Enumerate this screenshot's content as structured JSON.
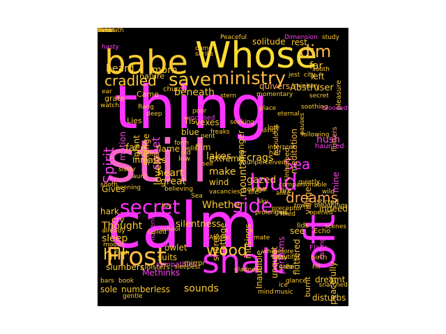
{
  "palette": {
    "background": "#000000",
    "magenta": "#ff33ff",
    "pink": "#ff66cc",
    "orange": "#ff9966",
    "yellow": "#ffdd33",
    "light_orange": "#ffaa55"
  },
  "words": [
    {
      "text": "thing",
      "color": "#ff33ff"
    },
    {
      "text": "still",
      "color": "#ff66cc"
    },
    {
      "text": "calm",
      "color": "#ff33ff"
    },
    {
      "text": "Whose",
      "color": "#ffdd33"
    },
    {
      "text": "babe",
      "color": "#ffcc33"
    },
    {
      "text": "Frost",
      "color": "#ffbb44"
    },
    {
      "text": "shalt",
      "color": "#ff33ff"
    },
    {
      "text": "secret",
      "color": "#ff33ff"
    },
    {
      "text": "side",
      "color": "#ff33ff"
    },
    {
      "text": "oft",
      "color": "#ff33ff"
    },
    {
      "text": "loud",
      "color": "#ff33ff"
    },
    {
      "text": "ministry",
      "color": "#ffbb44"
    },
    {
      "text": "save",
      "color": "#ffcc33"
    },
    {
      "text": "Spirit",
      "color": "#ff44ee"
    },
    {
      "text": "dreams",
      "color": "#ffaa55"
    },
    {
      "text": "cradled",
      "color": "#ffcc33"
    },
    {
      "text": "wood",
      "color": "#ffcc33"
    },
    {
      "text": "Sea",
      "color": "#ff33ff"
    },
    {
      "text": "dim",
      "color": "#ffbb44"
    },
    {
      "text": "hill",
      "color": "#ffcc33"
    },
    {
      "text": "heard",
      "color": "#ffcc33"
    },
    {
      "text": "morn",
      "color": "#ffcc33"
    },
    {
      "text": "rest",
      "color": "#ffcc33"
    },
    {
      "text": "far",
      "color": "#ffcc33"
    },
    {
      "text": "gazed",
      "color": "#ffbb44"
    },
    {
      "text": "sweet",
      "color": "#ff44ee"
    },
    {
      "text": "lovely",
      "color": "#ffcc33"
    },
    {
      "text": "crags",
      "color": "#ffcc33"
    },
    {
      "text": "mountain",
      "color": "#ffcc33"
    },
    {
      "text": "lakes",
      "color": "#ffcc33"
    },
    {
      "text": "make",
      "color": "#ffcc33"
    },
    {
      "text": "beneath",
      "color": "#ffcc33"
    },
    {
      "text": "face",
      "color": "#ffcc33"
    },
    {
      "text": "heart",
      "color": "#ffcc33"
    },
    {
      "text": "great",
      "color": "#ffcc33"
    },
    {
      "text": "Thought",
      "color": "#ffcc33"
    },
    {
      "text": "sleep",
      "color": "#ffcc33"
    },
    {
      "text": "sounds",
      "color": "#ffcc33"
    },
    {
      "text": "dreamt",
      "color": "#ffcc33"
    },
    {
      "text": "shores",
      "color": "#ffcc33"
    },
    {
      "text": "Whether",
      "color": "#ffcc33"
    },
    {
      "text": "silentness",
      "color": "#ffcc33"
    },
    {
      "text": "indeed",
      "color": "#ffcc33"
    },
    {
      "text": "hush",
      "color": "#ff44ee"
    },
    {
      "text": "village",
      "color": "#ffbb44"
    },
    {
      "text": "Abstruser",
      "color": "#ffcc33"
    },
    {
      "text": "quivers",
      "color": "#ffaa55"
    },
    {
      "text": "stranger",
      "color": "#ffcc33"
    },
    {
      "text": "fluttered",
      "color": "#ffcc33"
    },
    {
      "text": "populous",
      "color": "#ffbb44"
    },
    {
      "text": "meditation",
      "color": "#ffbb44"
    },
    {
      "text": "solitude",
      "color": "#ffcc33"
    },
    {
      "text": "strange",
      "color": "#ffcc33"
    },
    {
      "text": "infant",
      "color": "#ffcc33"
    },
    {
      "text": "motion",
      "color": "#ff44ee"
    },
    {
      "text": "inmates",
      "color": "#ffcc33"
    },
    {
      "text": "flame",
      "color": "#ffcc33"
    },
    {
      "text": "film",
      "color": "#ffcc33"
    },
    {
      "text": "blue",
      "color": "#ffcc33"
    },
    {
      "text": "extreme",
      "color": "#ffcc33"
    },
    {
      "text": "wind",
      "color": "#ffcc33"
    },
    {
      "text": "vexes",
      "color": "#ffcc33"
    },
    {
      "text": "Tis",
      "color": "#ffcc33"
    },
    {
      "text": "goings",
      "color": "#ffcc33"
    },
    {
      "text": "life",
      "color": "#ffcc33"
    },
    {
      "text": "fire",
      "color": "#ffcc33"
    },
    {
      "text": "Unhelped",
      "color": "#ffcc33"
    },
    {
      "text": "see",
      "color": "#ffcc33"
    },
    {
      "text": "mine",
      "color": "#ff44ee"
    },
    {
      "text": "left",
      "color": "#ffcc33"
    },
    {
      "text": "nature",
      "color": "#ffcc33"
    },
    {
      "text": "grate",
      "color": "#ffcc33"
    },
    {
      "text": "Came",
      "color": "#ffcc33"
    },
    {
      "text": "Lies",
      "color": "#ffcc33"
    },
    {
      "text": "church",
      "color": "#ffcc33"
    },
    {
      "text": "Gives",
      "color": "#ffcc33"
    },
    {
      "text": "hark",
      "color": "#ffcc33"
    },
    {
      "text": "cry",
      "color": "#ffcc33"
    },
    {
      "text": "slumbers",
      "color": "#ffcc33"
    },
    {
      "text": "suits",
      "color": "#ffcc33"
    },
    {
      "text": "owlet",
      "color": "#ffcc33"
    },
    {
      "text": "Methinks",
      "color": "#ff44ee"
    },
    {
      "text": "numberless",
      "color": "#ffcc33"
    },
    {
      "text": "sole",
      "color": "#ffcc33"
    },
    {
      "text": "cottage",
      "color": "#ffcc33"
    },
    {
      "text": "musings",
      "color": "#ffcc33"
    },
    {
      "text": "Inaudible",
      "color": "#ffcc33"
    },
    {
      "text": "unquiet",
      "color": "#ffcc33"
    },
    {
      "text": "performs",
      "color": "#ff44ee"
    },
    {
      "text": "burnt",
      "color": "#ffcc33"
    },
    {
      "text": "peacefully",
      "color": "#ffcc33"
    },
    {
      "text": "disturbs",
      "color": "#ffcc33"
    },
    {
      "text": "pleasure",
      "color": "#ffcc33"
    },
    {
      "text": "flutters",
      "color": "#ffaa55"
    },
    {
      "text": "haunted",
      "color": "#ff44ee"
    },
    {
      "text": "stirred",
      "color": "#ffcc33"
    },
    {
      "text": "Echo",
      "color": "#ffcc33"
    },
    {
      "text": "Flaps",
      "color": "#ff44ee"
    },
    {
      "text": "birth",
      "color": "#ffcc33"
    },
    {
      "text": "lids",
      "color": "#ffcc33"
    },
    {
      "text": "low",
      "color": "#ffcc33"
    },
    {
      "text": "form",
      "color": "#ffcc33"
    },
    {
      "text": "toy",
      "color": "#ffcc33"
    },
    {
      "text": "Making",
      "color": "#ffcc33"
    },
    {
      "text": "sister",
      "color": "#ffcc33"
    },
    {
      "text": "watch",
      "color": "#ffcc33"
    },
    {
      "text": "Rang",
      "color": "#ffcc33"
    },
    {
      "text": "poor",
      "color": "#ffcc33"
    },
    {
      "text": "come",
      "color": "#ffcc33"
    },
    {
      "text": "shrills",
      "color": "#ffcc33"
    },
    {
      "text": "opened",
      "color": "#ffcc33"
    },
    {
      "text": "falling",
      "color": "#ff44ee"
    },
    {
      "text": "evening",
      "color": "#ffcc33"
    },
    {
      "text": "fluttering",
      "color": "#ff44ee"
    },
    {
      "text": "already",
      "color": "#ffcc33"
    },
    {
      "text": "moods",
      "color": "#ffcc33"
    },
    {
      "text": "sympathies",
      "color": "#ff44ee"
    },
    {
      "text": "Lulled",
      "color": "#ffcc33"
    },
    {
      "text": "school",
      "color": "#ffcc33"
    },
    {
      "text": "cloisters",
      "color": "#ffcc33"
    },
    {
      "text": "sleepest",
      "color": "#ffcc33"
    },
    {
      "text": "mirror",
      "color": "#ffcc33"
    },
    {
      "text": "mind",
      "color": "#ffcc33"
    },
    {
      "text": "music",
      "color": "#ffcc33"
    },
    {
      "text": "gentle",
      "color": "#ffcc33"
    },
    {
      "text": "glance",
      "color": "#ffcc33"
    },
    {
      "text": "day",
      "color": "#ffcc33"
    },
    {
      "text": "Fair",
      "color": "#ffcc33"
    },
    {
      "text": "Fill",
      "color": "#ffcc33"
    },
    {
      "text": "thus",
      "color": "#ffcc33"
    },
    {
      "text": "preceptor",
      "color": "#ffcc33"
    },
    {
      "text": "companionable",
      "color": "#ffcc33"
    },
    {
      "text": "interpret",
      "color": "#ffcc33"
    },
    {
      "text": "freaks",
      "color": "#ffcc33"
    },
    {
      "text": "unclosed",
      "color": "#ff44ee"
    },
    {
      "text": "seeking",
      "color": "#ffcc33"
    },
    {
      "text": "vacancies",
      "color": "#ffcc33"
    },
    {
      "text": "believing",
      "color": "#ffcc33"
    },
    {
      "text": "gladness",
      "color": "#ffcc33"
    },
    {
      "text": "prolonged",
      "color": "#ffcc33"
    },
    {
      "text": "momentary",
      "color": "#ffcc33"
    },
    {
      "text": "eternal",
      "color": "#ffcc33"
    },
    {
      "text": "Peaceful",
      "color": "#ffcc33"
    },
    {
      "text": "Dimension",
      "color": "#ff44ee"
    },
    {
      "text": "study",
      "color": "#ffcc33"
    },
    {
      "text": "hasty",
      "color": "#ff44ee"
    },
    {
      "text": "brooded",
      "color": "#ff44ee"
    },
    {
      "text": "ear",
      "color": "#ffcc33"
    },
    {
      "text": "stern",
      "color": "#ffcc33"
    },
    {
      "text": "place",
      "color": "#ffcc33"
    },
    {
      "text": "half",
      "color": "#ffcc33"
    },
    {
      "text": "live",
      "color": "#ffcc33"
    },
    {
      "text": "alike",
      "color": "#ffcc33"
    },
    {
      "text": "tower",
      "color": "#ffcc33"
    },
    {
      "text": "bars",
      "color": "#ffcc33"
    },
    {
      "text": "book",
      "color": "#ffcc33"
    },
    {
      "text": "city",
      "color": "#ffcc33"
    },
    {
      "text": "Awake",
      "color": "#ffcc33"
    },
    {
      "text": "aunt",
      "color": "#ffcc33"
    },
    {
      "text": "deep",
      "color": "#ffcc33"
    },
    {
      "text": "gaze",
      "color": "#ffcc33"
    },
    {
      "text": "sooth",
      "color": "#ffcc33"
    },
    {
      "text": "breathings",
      "color": "#ffcc33"
    },
    {
      "text": "pauses",
      "color": "#ffcc33"
    },
    {
      "text": "mate",
      "color": "#ffcc33"
    },
    {
      "text": "beautiful",
      "color": "#ffcc33"
    },
    {
      "text": "bells",
      "color": "#ffcc33"
    },
    {
      "text": "old",
      "color": "#ffcc33"
    },
    {
      "text": "ding",
      "color": "#ffcc33"
    },
    {
      "text": "scenes",
      "color": "#ffcc33"
    },
    {
      "text": "lore",
      "color": "#ffcc33"
    },
    {
      "text": "pent",
      "color": "#ffcc33"
    },
    {
      "text": "self",
      "color": "#ffcc33"
    },
    {
      "text": "wild",
      "color": "#ffcc33"
    },
    {
      "text": "following",
      "color": "#ffcc33"
    },
    {
      "text": "secret",
      "color": "#ffcc33"
    },
    {
      "text": "fixed",
      "color": "#ffcc33"
    },
    {
      "text": "sooth",
      "color": "#ffcc33"
    },
    {
      "text": "Each",
      "color": "#ffcc33"
    },
    {
      "text": "wherefore",
      "color": "#ffcc33"
    },
    {
      "text": "ice",
      "color": "#ffcc33"
    },
    {
      "text": "ministry",
      "color": "#ffcc33"
    },
    {
      "text": "soothing",
      "color": "#ffcc33"
    },
    {
      "text": "unperceived",
      "color": "#ffcc33"
    },
    {
      "text": "quietly",
      "color": "#ffcc33"
    },
    {
      "text": "snatched",
      "color": "#ffcc33"
    },
    {
      "text": "sky",
      "color": "#ffcc33"
    },
    {
      "text": "Sea",
      "color": "#ffcc33"
    },
    {
      "text": "jest",
      "color": "#ffcc33"
    },
    {
      "text": "Echo",
      "color": "#ffcc33"
    },
    {
      "text": "soul",
      "color": "#ffcc33"
    },
    {
      "text": "Beneath",
      "color": "#ffcc33"
    },
    {
      "text": "vale",
      "color": "#ffcc33"
    },
    {
      "text": "cloud",
      "color": "#ffcc33"
    }
  ]
}
